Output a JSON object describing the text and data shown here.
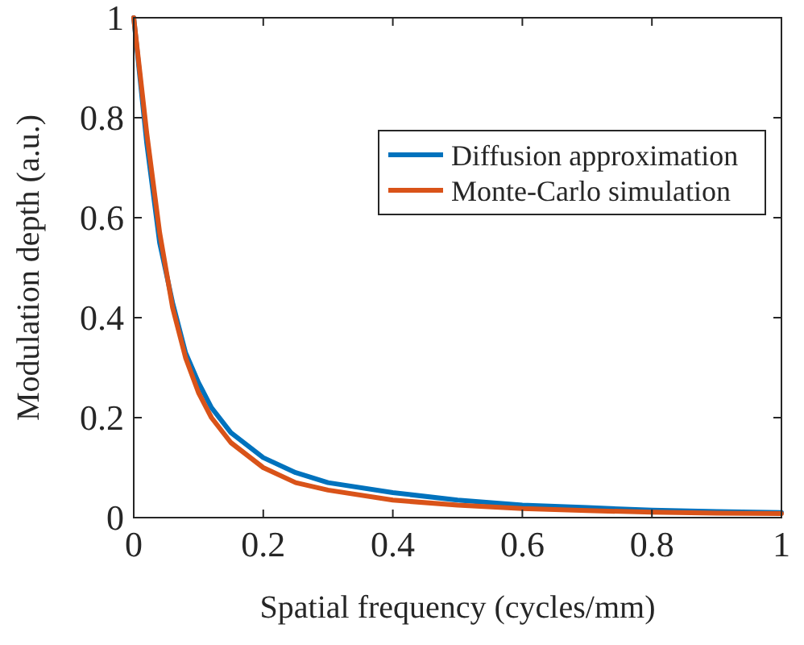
{
  "chart_data": {
    "type": "line",
    "xlabel": "Spatial frequency (cycles/mm)",
    "ylabel": "Modulation depth (a.u.)",
    "xlim": [
      0,
      1
    ],
    "ylim": [
      0,
      1
    ],
    "xticks": [
      0,
      0.2,
      0.4,
      0.6,
      0.8,
      1
    ],
    "yticks": [
      0,
      0.2,
      0.4,
      0.6,
      0.8,
      1
    ],
    "grid": false,
    "legend": "top right",
    "line_style": "solid",
    "marker": "none",
    "x": [
      0,
      0.02,
      0.04,
      0.06,
      0.08,
      0.1,
      0.12,
      0.15,
      0.2,
      0.25,
      0.3,
      0.4,
      0.5,
      0.6,
      0.7,
      0.8,
      0.9,
      1
    ],
    "series": [
      {
        "name": "Diffusion approximation",
        "color": "#0072bd",
        "values": [
          1,
          0.75,
          0.55,
          0.43,
          0.33,
          0.27,
          0.22,
          0.17,
          0.12,
          0.09,
          0.07,
          0.05,
          0.035,
          0.025,
          0.02,
          0.015,
          0.012,
          0.01
        ]
      },
      {
        "name": "Monte-Carlo simulation",
        "color": "#d95319",
        "values": [
          1,
          0.77,
          0.57,
          0.42,
          0.32,
          0.25,
          0.2,
          0.15,
          0.1,
          0.07,
          0.055,
          0.035,
          0.025,
          0.018,
          0.014,
          0.011,
          0.009,
          0.008
        ]
      }
    ]
  }
}
